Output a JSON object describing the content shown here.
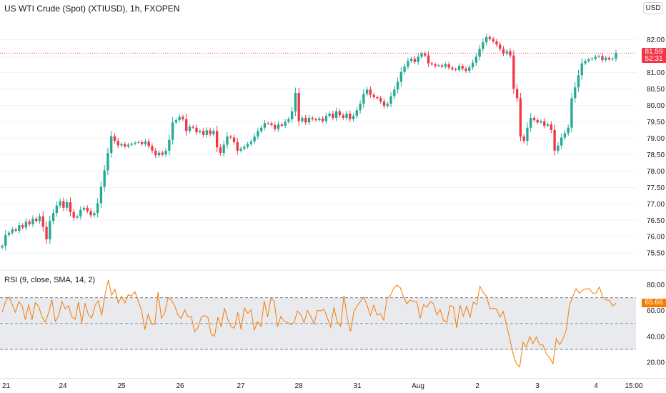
{
  "header": {
    "title": "US WTI Crude (Spot) (XTIUSD), 1h, FXOPEN",
    "currency": "USD"
  },
  "price_axis": {
    "ticks": [
      "82.00",
      "81.50",
      "81.00",
      "80.50",
      "80.00",
      "79.50",
      "79.00",
      "78.50",
      "78.00",
      "77.50",
      "77.00",
      "76.50",
      "76.00",
      "75.50"
    ],
    "last_price": "81.59",
    "countdown": "52:31"
  },
  "rsi": {
    "label": "RSI (9, close, SMA, 14, 2)",
    "ticks": [
      "80.00",
      "60.00",
      "40.00",
      "20.00"
    ],
    "last_value": "65.66",
    "upper_band": 70,
    "middle_band": 50,
    "lower_band": 30
  },
  "time_axis": {
    "labels": [
      "21",
      "24",
      "25",
      "26",
      "27",
      "28",
      "31",
      "Aug",
      "2",
      "3",
      "4",
      "15:00"
    ]
  },
  "colors": {
    "up": "#22ab94",
    "down": "#f23645",
    "rsi_line": "#f57c00",
    "band_fill": "#e9eaee"
  },
  "chart_data": [
    {
      "type": "candlestick",
      "title": "US WTI Crude (Spot) (XTIUSD), 1h, FXOPEN",
      "ylim": [
        75.2,
        82.6
      ],
      "x_labels": [
        "21",
        "24",
        "25",
        "26",
        "27",
        "28",
        "31",
        "Aug",
        "2",
        "3",
        "4",
        "15:00"
      ],
      "close_series": [
        75.72,
        76.05,
        76.12,
        76.22,
        76.18,
        76.35,
        76.28,
        76.46,
        76.38,
        76.55,
        76.48,
        76.62,
        76.3,
        75.92,
        76.48,
        76.72,
        76.95,
        77.08,
        76.88,
        77.05,
        76.75,
        76.58,
        76.62,
        76.82,
        76.88,
        76.78,
        76.65,
        76.72,
        77.02,
        77.52,
        78.02,
        78.55,
        79.06,
        78.92,
        78.78,
        78.82,
        78.75,
        78.8,
        78.83,
        78.86,
        78.88,
        78.82,
        78.9,
        78.76,
        78.62,
        78.48,
        78.56,
        78.5,
        78.62,
        78.95,
        79.48,
        79.55,
        79.65,
        79.58,
        79.22,
        79.35,
        79.32,
        79.18,
        79.22,
        79.1,
        79.24,
        79.12,
        79.22,
        78.72,
        78.55,
        78.8,
        79.05,
        79.02,
        78.88,
        78.62,
        78.68,
        78.74,
        78.82,
        78.9,
        79.05,
        79.22,
        79.32,
        79.46,
        79.45,
        79.4,
        79.28,
        79.42,
        79.38,
        79.5,
        79.58,
        79.82,
        80.38,
        79.52,
        79.62,
        79.48,
        79.62,
        79.58,
        79.55,
        79.6,
        79.52,
        79.68,
        79.75,
        79.62,
        79.82,
        79.7,
        79.62,
        79.75,
        79.58,
        79.68,
        79.85,
        80.05,
        80.35,
        80.48,
        80.32,
        80.25,
        80.22,
        80.12,
        79.98,
        80.05,
        80.28,
        80.48,
        80.72,
        81.02,
        81.18,
        81.35,
        81.42,
        81.32,
        81.48,
        81.58,
        81.52,
        81.28,
        81.25,
        81.2,
        81.22,
        81.18,
        81.25,
        81.15,
        81.1,
        81.08,
        81.2,
        81.12,
        81.05,
        81.16,
        81.3,
        81.48,
        81.72,
        81.92,
        82.08,
        82.02,
        81.95,
        81.85,
        81.72,
        81.58,
        81.65,
        81.52,
        80.5,
        80.22,
        79.05,
        78.92,
        79.32,
        79.62,
        79.55,
        79.48,
        79.52,
        79.38,
        79.42,
        79.25,
        78.62,
        78.78,
        79.02,
        79.15,
        79.32,
        80.22,
        80.55,
        80.92,
        81.28,
        81.35,
        81.4,
        81.42,
        81.48,
        81.5,
        81.38,
        81.45,
        81.4,
        81.42,
        81.59
      ],
      "ylabel": ""
    },
    {
      "type": "line",
      "title": "RSI (9, close, SMA, 14, 2)",
      "ylim": [
        14,
        88
      ],
      "y_ticks": [
        80,
        60,
        40,
        20
      ],
      "bands": [
        70,
        50,
        30
      ],
      "values": [
        58.7,
        66.8,
        70.6,
        65.0,
        58.7,
        66.8,
        63.8,
        53.0,
        64.7,
        52.9,
        66.2,
        63.2,
        55.3,
        51.0,
        58.3,
        68.4,
        51.8,
        55.6,
        67.1,
        61.4,
        63.8,
        55.1,
        53.3,
        66.7,
        50.6,
        65.7,
        56.8,
        54.2,
        64.0,
        67.7,
        56.2,
        72.1,
        83.7,
        72.0,
        76.4,
        65.8,
        71.0,
        65.9,
        72.3,
        71.2,
        74.7,
        67.4,
        60.4,
        45.3,
        57.2,
        49.6,
        49.3,
        74.3,
        54.1,
        58.4,
        70.0,
        68.0,
        64.0,
        56.6,
        53.9,
        60.7,
        55.3,
        55.5,
        43.8,
        46.8,
        54.8,
        56.2,
        54.7,
        41.5,
        40.2,
        54.9,
        47.4,
        62.0,
        53.2,
        47.6,
        46.4,
        58.7,
        45.4,
        61.9,
        57.9,
        60.6,
        44.9,
        51.5,
        47.9,
        67.4,
        55.0,
        69.4,
        67.3,
        47.6,
        55.6,
        51.8,
        50.9,
        49.2,
        50.9,
        59.6,
        56.9,
        50.6,
        60.1,
        55.7,
        49.7,
        60.1,
        59.7,
        61.1,
        54.5,
        47.2,
        62.5,
        51.2,
        47.8,
        71.7,
        54.6,
        43.9,
        59.1,
        63.8,
        67.1,
        70.3,
        64.0,
        56.2,
        64.1,
        56.5,
        57.6,
        52.7,
        69.6,
        71.5,
        77.4,
        79.7,
        77.7,
        70.4,
        65.3,
        68.1,
        67.2,
        66.7,
        54.1,
        64.7,
        62.7,
        66.9,
        65.4,
        56.7,
        60.9,
        52.4,
        51.2,
        63.9,
        62.9,
        46.7,
        64.3,
        55.7,
        63.4,
        54.7,
        66.5,
        64.6,
        78.8,
        73.8,
        71.2,
        61.4,
        61.8,
        61.2,
        54.9,
        59.4,
        49.3,
        38.0,
        26.5,
        18.7,
        16.6,
        35.5,
        31.8,
        39.9,
        34.5,
        39.6,
        33.5,
        33.5,
        26.5,
        23.7,
        19.1,
        38.5,
        33.6,
        38.0,
        45.0,
        64.4,
        70.7,
        76.9,
        73.3,
        75.9,
        76.8,
        76.9,
        73.5,
        73.6,
        78.3,
        70.6,
        68.2,
        68.1,
        63.4,
        65.7
      ],
      "ylabel": ""
    }
  ]
}
